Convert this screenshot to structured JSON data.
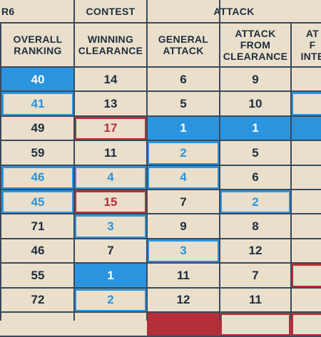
{
  "group_headers": [
    "R6",
    "CONTEST",
    "ATTACK"
  ],
  "column_headers": [
    "OVERALL\nRANKING",
    "WINNING\nCLEARANCE",
    "GENERAL\nATTACK",
    "ATTACK\nFROM\nCLEARANCE",
    "AT\nF\nINTE"
  ],
  "rows": [
    [
      {
        "v": "40",
        "s": "solid-blue"
      },
      {
        "v": "14",
        "s": "plain"
      },
      {
        "v": "6",
        "s": "plain"
      },
      {
        "v": "9",
        "s": "plain"
      },
      {
        "v": "",
        "s": "plain"
      }
    ],
    [
      {
        "v": "41",
        "s": "outline-blue"
      },
      {
        "v": "13",
        "s": "plain"
      },
      {
        "v": "5",
        "s": "plain"
      },
      {
        "v": "10",
        "s": "plain"
      },
      {
        "v": "",
        "s": "outline-blue"
      }
    ],
    [
      {
        "v": "49",
        "s": "plain"
      },
      {
        "v": "17",
        "s": "outline-red"
      },
      {
        "v": "1",
        "s": "solid-blue"
      },
      {
        "v": "1",
        "s": "solid-blue"
      },
      {
        "v": "",
        "s": "solid-blue"
      }
    ],
    [
      {
        "v": "59",
        "s": "plain"
      },
      {
        "v": "11",
        "s": "plain"
      },
      {
        "v": "2",
        "s": "outline-blue"
      },
      {
        "v": "5",
        "s": "plain"
      },
      {
        "v": "",
        "s": "plain"
      }
    ],
    [
      {
        "v": "46",
        "s": "outline-blue"
      },
      {
        "v": "4",
        "s": "outline-blue"
      },
      {
        "v": "4",
        "s": "outline-blue"
      },
      {
        "v": "6",
        "s": "plain"
      },
      {
        "v": "",
        "s": "plain"
      }
    ],
    [
      {
        "v": "45",
        "s": "outline-blue"
      },
      {
        "v": "15",
        "s": "outline-red"
      },
      {
        "v": "7",
        "s": "plain"
      },
      {
        "v": "2",
        "s": "outline-blue"
      },
      {
        "v": "",
        "s": "plain"
      }
    ],
    [
      {
        "v": "71",
        "s": "plain"
      },
      {
        "v": "3",
        "s": "outline-blue"
      },
      {
        "v": "9",
        "s": "plain"
      },
      {
        "v": "8",
        "s": "plain"
      },
      {
        "v": "",
        "s": "plain"
      }
    ],
    [
      {
        "v": "46",
        "s": "plain"
      },
      {
        "v": "7",
        "s": "plain"
      },
      {
        "v": "3",
        "s": "outline-blue"
      },
      {
        "v": "12",
        "s": "plain"
      },
      {
        "v": "",
        "s": "plain"
      }
    ],
    [
      {
        "v": "55",
        "s": "plain"
      },
      {
        "v": "1",
        "s": "solid-blue"
      },
      {
        "v": "11",
        "s": "plain"
      },
      {
        "v": "7",
        "s": "plain"
      },
      {
        "v": "",
        "s": "outline-red"
      }
    ],
    [
      {
        "v": "72",
        "s": "plain"
      },
      {
        "v": "2",
        "s": "outline-blue"
      },
      {
        "v": "12",
        "s": "plain"
      },
      {
        "v": "11",
        "s": "plain"
      },
      {
        "v": "",
        "s": "plain"
      }
    ],
    [
      {
        "v": "",
        "s": "plain"
      },
      {
        "v": "",
        "s": "plain"
      },
      {
        "v": "",
        "s": "solid-red"
      },
      {
        "v": "",
        "s": "outline-red"
      },
      {
        "v": "",
        "s": "outline-red"
      }
    ]
  ],
  "colors": {
    "background": "#e9dfcb",
    "grid_line": "#3a4a5c",
    "header_text": "#1f2d3d",
    "blue": "#2b94de",
    "red": "#b3303a",
    "plain_text": "#1f2d3d",
    "solid_text": "#ffffff"
  }
}
